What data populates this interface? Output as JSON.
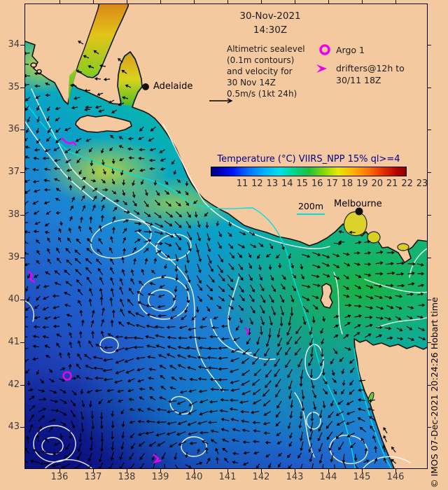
{
  "title": {
    "date": "30-Nov-2021",
    "time": "14:30Z"
  },
  "legend": {
    "line1": "Altimetric sealevel",
    "line2": "(0.1m contours)",
    "line3": "and velocity for",
    "line4": "30 Nov 14Z",
    "line5": "0.5m/s (1kt 24h)",
    "argo": "Argo 1",
    "drifters1": "drifters@12h to",
    "drifters2": "30/11 18Z"
  },
  "colorbar": {
    "title": "Temperature (°C) VIIRS_NPP 15% ql>=4",
    "ticks": [
      "11",
      "12",
      "13",
      "14",
      "15",
      "16",
      "17",
      "18",
      "19",
      "20",
      "21",
      "22",
      "23"
    ]
  },
  "map": {
    "adelaide": "Adelaide",
    "melbourne": "Melbourne",
    "isobath_label": "200m"
  },
  "axes": {
    "x_ticks": [
      "136",
      "137",
      "138",
      "139",
      "140",
      "141",
      "142",
      "143",
      "144",
      "145",
      "146"
    ],
    "y_ticks": [
      "34",
      "35",
      "36",
      "37",
      "38",
      "39",
      "40",
      "41",
      "42",
      "43"
    ]
  },
  "credit": "© IMOS 07-Dec-2021 20:24:26 Hobart time",
  "colors": {
    "land": "#f5c9a0",
    "magenta": "#ee00ee",
    "isobath_cyan": "#00e0e0",
    "title_navy": "#00008b"
  }
}
